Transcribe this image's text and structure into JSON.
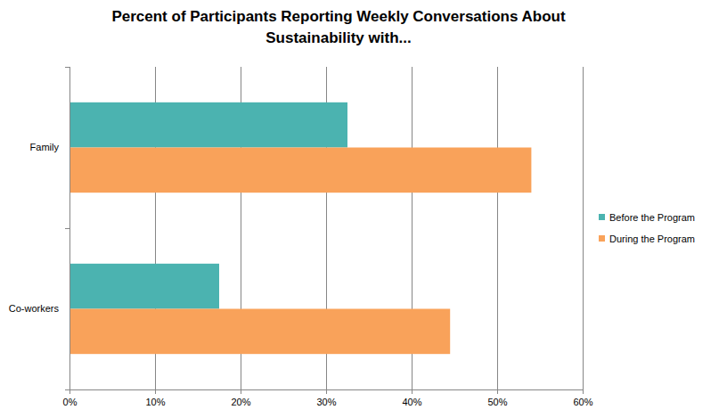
{
  "chart_data": {
    "type": "bar",
    "orientation": "horizontal",
    "title": "Percent of Participants  Reporting Weekly Conversations  About Sustainability  with...",
    "categories": [
      "Family",
      "Co-workers"
    ],
    "series": [
      {
        "name": "Before the Program",
        "color": "#4BB3B0",
        "values": [
          32.5,
          17.5
        ]
      },
      {
        "name": "During the Program",
        "color": "#F9A25A",
        "values": [
          54,
          44.5
        ]
      }
    ],
    "xlim": [
      0,
      60
    ],
    "xticks": [
      {
        "value": 0,
        "label": "0%"
      },
      {
        "value": 10,
        "label": "10%"
      },
      {
        "value": 20,
        "label": "20%"
      },
      {
        "value": 30,
        "label": "30%"
      },
      {
        "value": 40,
        "label": "40%"
      },
      {
        "value": 50,
        "label": "50%"
      },
      {
        "value": 60,
        "label": "60%"
      }
    ],
    "grid": true,
    "legend": "right"
  }
}
